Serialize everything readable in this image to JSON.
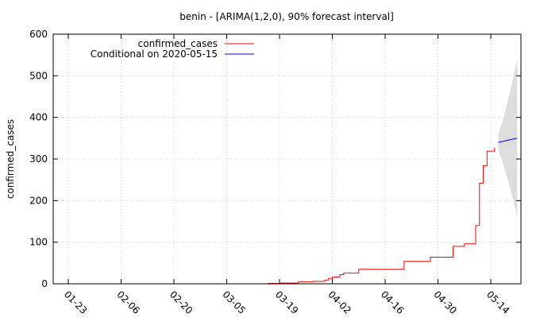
{
  "chart_data": {
    "type": "line",
    "title": "benin -  [ARIMA(1,2,0), 90% forecast interval]",
    "xlabel": "",
    "ylabel": "confirmed_cases",
    "xlim": [
      "2020-01-19",
      "2020-05-22"
    ],
    "ylim": [
      0,
      600
    ],
    "y_ticks": [
      0,
      100,
      200,
      300,
      400,
      500,
      600
    ],
    "x_ticks": [
      "2020-01-23",
      "2020-02-06",
      "2020-02-20",
      "2020-03-05",
      "2020-03-19",
      "2020-04-02",
      "2020-04-16",
      "2020-04-30",
      "2020-05-14"
    ],
    "x_tick_labels": [
      "01-23",
      "02-06",
      "02-20",
      "03-05",
      "03-19",
      "04-02",
      "04-16",
      "04-30",
      "05-14"
    ],
    "grid": true,
    "legend_position": "top-left",
    "series": [
      {
        "name": "confirmed_cases",
        "color": "#ff0000",
        "x": [
          "2020-03-15",
          "2020-03-16",
          "2020-03-17",
          "2020-03-18",
          "2020-03-19",
          "2020-03-20",
          "2020-03-21",
          "2020-03-22",
          "2020-03-23",
          "2020-03-24",
          "2020-03-25",
          "2020-03-26",
          "2020-03-27",
          "2020-03-28",
          "2020-03-29",
          "2020-03-30",
          "2020-03-31",
          "2020-04-01",
          "2020-04-02",
          "2020-04-03",
          "2020-04-04",
          "2020-04-05",
          "2020-04-06",
          "2020-04-07",
          "2020-04-08",
          "2020-04-09",
          "2020-04-10",
          "2020-04-11",
          "2020-04-12",
          "2020-04-13",
          "2020-04-14",
          "2020-04-15",
          "2020-04-16",
          "2020-04-17",
          "2020-04-18",
          "2020-04-19",
          "2020-04-20",
          "2020-04-21",
          "2020-04-22",
          "2020-04-23",
          "2020-04-24",
          "2020-04-25",
          "2020-04-26",
          "2020-04-27",
          "2020-04-28",
          "2020-04-29",
          "2020-04-30",
          "2020-05-01",
          "2020-05-02",
          "2020-05-03",
          "2020-05-04",
          "2020-05-05",
          "2020-05-06",
          "2020-05-07",
          "2020-05-08",
          "2020-05-09",
          "2020-05-10",
          "2020-05-11",
          "2020-05-12",
          "2020-05-13",
          "2020-05-14",
          "2020-05-15"
        ],
        "values": [
          0,
          1,
          1,
          1,
          2,
          2,
          2,
          2,
          2,
          5,
          5,
          5,
          5,
          6,
          6,
          6,
          9,
          13,
          16,
          16,
          22,
          26,
          26,
          26,
          26,
          35,
          35,
          35,
          35,
          35,
          35,
          35,
          35,
          35,
          35,
          35,
          35,
          54,
          54,
          54,
          54,
          54,
          54,
          54,
          64,
          64,
          64,
          64,
          64,
          64,
          90,
          90,
          90,
          96,
          96,
          96,
          140,
          242,
          284,
          319,
          319,
          327
        ]
      },
      {
        "name": "Conditional on 2020-05-15",
        "color": "#0000ff",
        "x": [
          "2020-05-16",
          "2020-05-17",
          "2020-05-18",
          "2020-05-19",
          "2020-05-20",
          "2020-05-21"
        ],
        "values": [
          340,
          342,
          344,
          346,
          348,
          350
        ]
      },
      {
        "name": "90% forecast interval",
        "type": "band",
        "color": "#dddddd",
        "x": [
          "2020-05-16",
          "2020-05-17",
          "2020-05-18",
          "2020-05-19",
          "2020-05-20",
          "2020-05-21"
        ],
        "lower": [
          322,
          297,
          267,
          234,
          199,
          162
        ],
        "upper": [
          358,
          387,
          421,
          458,
          497,
          540
        ]
      }
    ]
  }
}
